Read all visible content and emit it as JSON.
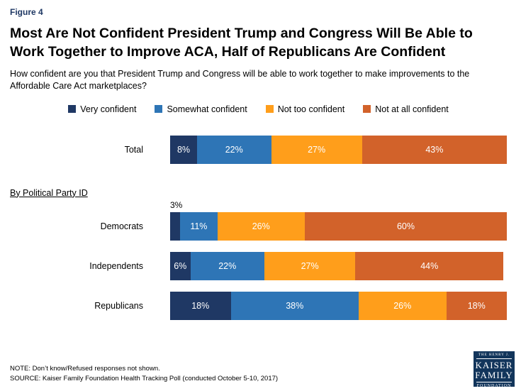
{
  "figure_label": "Figure 4",
  "title": "Most Are Not Confident President Trump and Congress Will Be Able to Work Together to Improve ACA, Half of Republicans Are Confident",
  "subtitle": "How confident are you that President Trump and Congress will be able to work together to make improvements to the Affordable Care Act marketplaces?",
  "section_label": "By Political Party ID",
  "note": "NOTE: Don’t know/Refused responses not shown.",
  "source": "SOURCE: Kaiser Family Foundation Health Tracking Poll (conducted October 5-10, 2017)",
  "logo": {
    "line1": "THE HENRY J.",
    "line2": "KAISER",
    "line3": "FAMILY",
    "line4": "FOUNDATION"
  },
  "chart_data": {
    "type": "bar",
    "orientation": "horizontal-stacked",
    "title": "Most Are Not Confident President Trump and Congress Will Be Able to Work Together to Improve ACA, Half of Republicans Are Confident",
    "categories": [
      "Total",
      "Democrats",
      "Independents",
      "Republicans"
    ],
    "series": [
      {
        "name": "Very confident",
        "color": "#1F3864",
        "values": [
          8,
          3,
          6,
          18
        ]
      },
      {
        "name": "Somewhat confident",
        "color": "#2E75B6",
        "values": [
          22,
          11,
          22,
          38
        ]
      },
      {
        "name": "Not too confident",
        "color": "#FF9E1B",
        "values": [
          27,
          26,
          27,
          26
        ]
      },
      {
        "name": "Not at all confident",
        "color": "#D2622A",
        "values": [
          43,
          60,
          44,
          18
        ]
      }
    ],
    "xlim": [
      0,
      100
    ],
    "value_suffix": "%",
    "legend_position": "top",
    "grid": false,
    "outside_labels": [
      {
        "category": "Democrats",
        "series": "Very confident",
        "label": "3%"
      }
    ]
  }
}
